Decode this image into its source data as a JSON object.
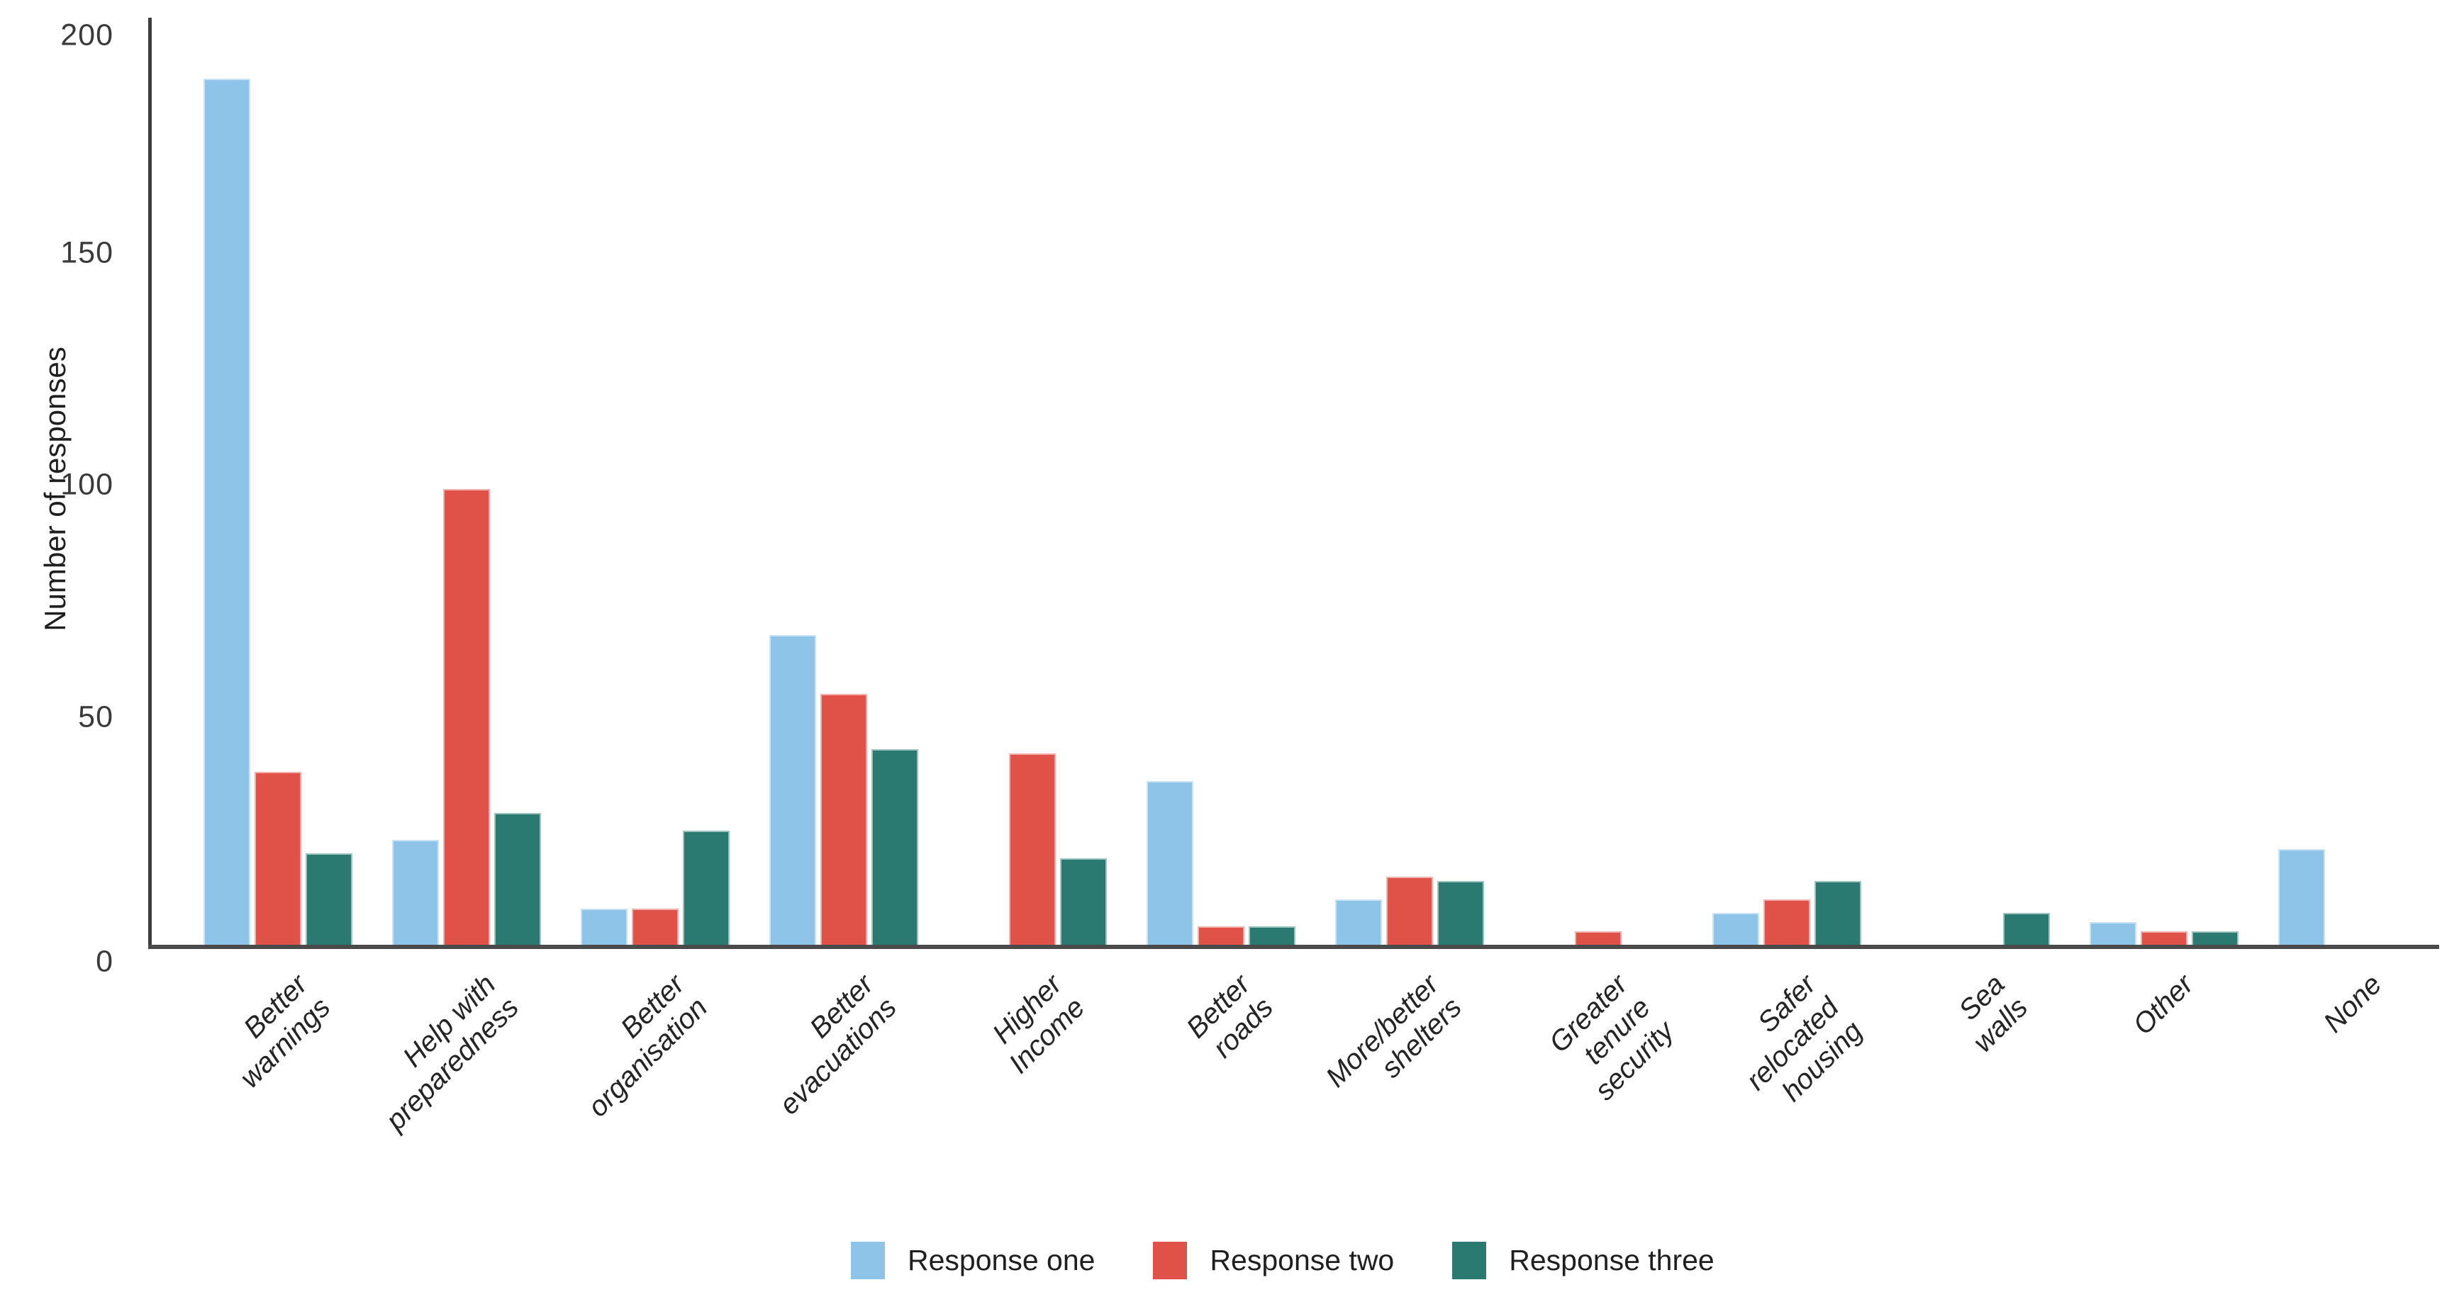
{
  "chart_data": {
    "type": "bar",
    "title": "",
    "ylabel": "Number of responses",
    "xlabel": "",
    "ylim": [
      0,
      200
    ],
    "yticks": [
      0,
      50,
      100,
      150,
      200
    ],
    "grid": false,
    "legend_position": "bottom-center",
    "categories": [
      "Better warnings",
      "Help with\npreparedness",
      "Better organisation",
      "Better evacuations",
      "Higher Income",
      "Better roads",
      "More/better\nshelters",
      "Greater tenure\nsecurity",
      "Safer relocated\nhousing",
      "Sea walls",
      "Other",
      "None"
    ],
    "series": [
      {
        "name": "Response one",
        "color": "#8dc4e8",
        "values": [
          190,
          23,
          8,
          68,
          0,
          36,
          10,
          0,
          7,
          0,
          5,
          21
        ]
      },
      {
        "name": "Response two",
        "color": "#e05247",
        "values": [
          38,
          100,
          8,
          55,
          42,
          4,
          15,
          3,
          10,
          0,
          3,
          0
        ]
      },
      {
        "name": "Response three",
        "color": "#2a7a72",
        "values": [
          20,
          29,
          25,
          43,
          19,
          4,
          14,
          0,
          14,
          7,
          3,
          0
        ]
      }
    ],
    "axis_color": "#454545",
    "text_color": "#2d2d2d"
  }
}
